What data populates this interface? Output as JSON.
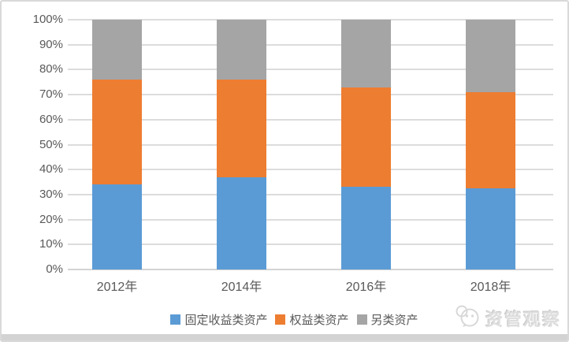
{
  "frame": {
    "background": "#ffffff",
    "border_color": "#d9d9d9"
  },
  "chart_data": {
    "type": "bar",
    "stacked": true,
    "percent_stacked": true,
    "title": "",
    "xlabel": "",
    "ylabel": "",
    "categories": [
      "2012年",
      "2014年",
      "2016年",
      "2018年"
    ],
    "series": [
      {
        "name": "固定收益类资产",
        "color": "#5B9BD5",
        "values": [
          34,
          37,
          33,
          32.5
        ]
      },
      {
        "name": "权益类资产",
        "color": "#ED7D31",
        "values": [
          42,
          39,
          40,
          38.5
        ]
      },
      {
        "name": "另类资产",
        "color": "#A5A5A5",
        "values": [
          24,
          24,
          27,
          29
        ]
      }
    ],
    "ylim": [
      0,
      100
    ],
    "y_ticks": [
      "0%",
      "10%",
      "20%",
      "30%",
      "40%",
      "50%",
      "60%",
      "70%",
      "80%",
      "90%",
      "100%"
    ],
    "grid": true,
    "legend_position": "bottom"
  },
  "watermark": {
    "label": "资管观察",
    "icon": "chat-bubbles-logo"
  },
  "colors": {
    "gridline": "#dcdcdc",
    "axis_line": "#d4d4d4",
    "axis_text": "#595959",
    "watermark_text": "#dedede",
    "bottom_divider": "#d3d3d3"
  }
}
